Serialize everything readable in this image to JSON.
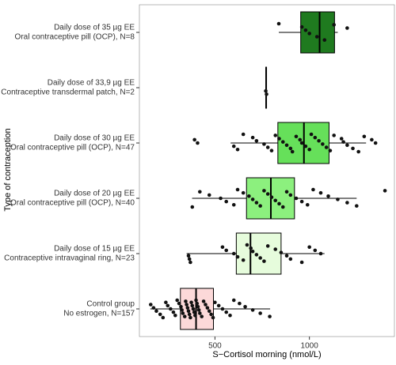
{
  "chart_data": {
    "type": "boxplot",
    "x_label": "S−Cortisol morning (nmol/L)",
    "y_label": "Type of contraception",
    "xlim": [
      100,
      1450
    ],
    "xticks": [
      500,
      1000
    ],
    "groups": [
      {
        "label": [
          "Daily dose of 35 µg EE",
          "Oral contraceptive pill (OCP), N=8"
        ],
        "color": "#1f7a1f",
        "min": 838,
        "q1": 954,
        "median": 1054,
        "q3": 1133,
        "max": 1150,
        "points": [
          838,
          960,
          980,
          1000,
          1040,
          1080,
          1130,
          1200
        ]
      },
      {
        "label": [
          "Daily dose of 33,9 µg EE",
          "Contraceptive transdermal patch, N=2"
        ],
        "color": "#1f7a1f",
        "min": 767,
        "q1": 769,
        "median": 771,
        "q3": 773,
        "max": 775,
        "points": [
          769,
          773
        ]
      },
      {
        "label": [
          "Daily dose of 30 µg EE",
          "Oral contraceptive pill (OCP), N=47"
        ],
        "color": "#66e05a",
        "min": 583,
        "q1": 833,
        "median": 971,
        "q3": 1104,
        "max": 1300,
        "points": [
          392,
          408,
          600,
          620,
          650,
          700,
          720,
          760,
          780,
          800,
          820,
          840,
          860,
          880,
          900,
          910,
          930,
          950,
          960,
          980,
          1000,
          1010,
          1030,
          1050,
          1070,
          1090,
          1110,
          1130,
          1170,
          1180,
          1200,
          1230,
          1260,
          1290,
          1330,
          1350
        ]
      },
      {
        "label": [
          "Daily dose of 20 µg EE",
          "Oral contraceptive pill (OCP), N=40"
        ],
        "color": "#8cf07e",
        "min": 379,
        "q1": 667,
        "median": 796,
        "q3": 921,
        "max": 1250,
        "points": [
          380,
          420,
          470,
          530,
          560,
          600,
          620,
          650,
          680,
          700,
          720,
          740,
          760,
          780,
          800,
          820,
          840,
          860,
          880,
          900,
          930,
          960,
          990,
          1020,
          1060,
          1100,
          1150,
          1200,
          1250,
          1400
        ]
      },
      {
        "label": [
          "Daily dose of 15 µg EE",
          "Contraceptive intravaginal ring, N=23"
        ],
        "color": "#e6fcdc",
        "min": 350,
        "q1": 613,
        "median": 688,
        "q3": 850,
        "max": 1080,
        "points": [
          360,
          365,
          370,
          540,
          560,
          600,
          620,
          650,
          670,
          690,
          700,
          720,
          740,
          760,
          780,
          820,
          850,
          880,
          900,
          960,
          1000,
          1030,
          1060
        ]
      },
      {
        "label": [
          "Control group",
          "No estrogen, N=157"
        ],
        "color": "#fcd9d9",
        "min": 158,
        "q1": 317,
        "median": 400,
        "q3": 492,
        "max": 792,
        "points": [
          160,
          175,
          190,
          210,
          225,
          240,
          250,
          265,
          280,
          290,
          300,
          310,
          320,
          325,
          330,
          340,
          345,
          350,
          355,
          360,
          365,
          370,
          375,
          380,
          385,
          390,
          395,
          400,
          405,
          410,
          415,
          420,
          430,
          440,
          450,
          460,
          470,
          480,
          490,
          500,
          520,
          540,
          560,
          580,
          600,
          630,
          660,
          700,
          740,
          790
        ]
      }
    ]
  }
}
